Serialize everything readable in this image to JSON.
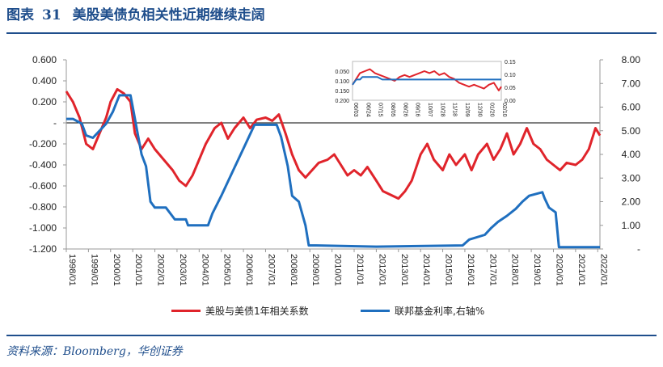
{
  "header": {
    "figure_label": "图表",
    "figure_number": "31",
    "title": "美股美债负相关性近期继续走阔"
  },
  "source": "资料来源：Bloomberg，华创证券",
  "colors": {
    "red": "#e0242b",
    "blue": "#1f6fbf",
    "rule": "#1f4e8c",
    "axis": "#888888"
  },
  "chart_data": {
    "type": "line",
    "title": "美股美债负相关性近期继续走阔",
    "x_categories": [
      "1998/01",
      "1999/01",
      "2000/01",
      "2001/01",
      "2002/01",
      "2003/01",
      "2004/01",
      "2005/01",
      "2006/01",
      "2007/01",
      "2008/01",
      "2009/01",
      "2010/01",
      "2011/01",
      "2012/01",
      "2013/01",
      "2014/01",
      "2015/01",
      "2016/01",
      "2017/01",
      "2018/01",
      "2019/01",
      "2020/01",
      "2021/01",
      "2022/01"
    ],
    "y_left": {
      "min": -1.2,
      "max": 0.6,
      "ticks": [
        "0.600",
        "0.400",
        "0.200",
        "-",
        "-0.200",
        "-0.400",
        "-0.600",
        "-0.800",
        "-1.000",
        "-1.200"
      ]
    },
    "y_right": {
      "min": 0,
      "max": 8,
      "ticks": [
        "8.00",
        "7.00",
        "6.00",
        "5.00",
        "4.00",
        "3.00",
        "2.00",
        "1.00",
        "-"
      ]
    },
    "series": [
      {
        "name": "美股与美债1年相关系数",
        "axis": "left",
        "color": "#e0242b",
        "points": [
          [
            1998.0,
            0.3
          ],
          [
            1998.3,
            0.2
          ],
          [
            1998.6,
            0.05
          ],
          [
            1998.9,
            -0.2
          ],
          [
            1999.2,
            -0.25
          ],
          [
            1999.5,
            -0.1
          ],
          [
            1999.8,
            0.05
          ],
          [
            2000.0,
            0.2
          ],
          [
            2000.3,
            0.32
          ],
          [
            2000.6,
            0.28
          ],
          [
            2000.9,
            0.2
          ],
          [
            2001.1,
            -0.1
          ],
          [
            2001.4,
            -0.25
          ],
          [
            2001.7,
            -0.15
          ],
          [
            2002.0,
            -0.25
          ],
          [
            2002.4,
            -0.35
          ],
          [
            2002.8,
            -0.45
          ],
          [
            2003.1,
            -0.55
          ],
          [
            2003.4,
            -0.6
          ],
          [
            2003.7,
            -0.5
          ],
          [
            2004.0,
            -0.35
          ],
          [
            2004.3,
            -0.2
          ],
          [
            2004.7,
            -0.05
          ],
          [
            2005.0,
            0.0
          ],
          [
            2005.3,
            -0.15
          ],
          [
            2005.6,
            -0.05
          ],
          [
            2006.0,
            0.05
          ],
          [
            2006.3,
            -0.05
          ],
          [
            2006.6,
            0.03
          ],
          [
            2007.0,
            0.05
          ],
          [
            2007.3,
            0.02
          ],
          [
            2007.6,
            0.08
          ],
          [
            2007.9,
            -0.1
          ],
          [
            2008.2,
            -0.3
          ],
          [
            2008.5,
            -0.45
          ],
          [
            2008.8,
            -0.52
          ],
          [
            2009.1,
            -0.45
          ],
          [
            2009.4,
            -0.38
          ],
          [
            2009.8,
            -0.35
          ],
          [
            2010.1,
            -0.3
          ],
          [
            2010.4,
            -0.4
          ],
          [
            2010.7,
            -0.5
          ],
          [
            2011.0,
            -0.45
          ],
          [
            2011.3,
            -0.5
          ],
          [
            2011.6,
            -0.42
          ],
          [
            2012.0,
            -0.55
          ],
          [
            2012.3,
            -0.65
          ],
          [
            2012.6,
            -0.68
          ],
          [
            2013.0,
            -0.72
          ],
          [
            2013.3,
            -0.65
          ],
          [
            2013.6,
            -0.55
          ],
          [
            2014.0,
            -0.3
          ],
          [
            2014.3,
            -0.2
          ],
          [
            2014.6,
            -0.35
          ],
          [
            2015.0,
            -0.45
          ],
          [
            2015.3,
            -0.3
          ],
          [
            2015.6,
            -0.4
          ],
          [
            2016.0,
            -0.3
          ],
          [
            2016.3,
            -0.45
          ],
          [
            2016.6,
            -0.3
          ],
          [
            2017.0,
            -0.2
          ],
          [
            2017.3,
            -0.35
          ],
          [
            2017.6,
            -0.25
          ],
          [
            2017.9,
            -0.1
          ],
          [
            2018.2,
            -0.3
          ],
          [
            2018.5,
            -0.2
          ],
          [
            2018.8,
            -0.05
          ],
          [
            2019.1,
            -0.2
          ],
          [
            2019.4,
            -0.25
          ],
          [
            2019.7,
            -0.35
          ],
          [
            2020.0,
            -0.4
          ],
          [
            2020.3,
            -0.45
          ],
          [
            2020.6,
            -0.38
          ],
          [
            2021.0,
            -0.4
          ],
          [
            2021.3,
            -0.35
          ],
          [
            2021.6,
            -0.25
          ],
          [
            2021.9,
            -0.05
          ],
          [
            2022.1,
            -0.12
          ]
        ]
      },
      {
        "name": "联邦基金利率,右轴%",
        "axis": "right",
        "color": "#1f6fbf",
        "points": [
          [
            1998.0,
            5.5
          ],
          [
            1998.3,
            5.5
          ],
          [
            1998.7,
            5.3
          ],
          [
            1998.9,
            4.8
          ],
          [
            1999.2,
            4.7
          ],
          [
            1999.5,
            5.0
          ],
          [
            1999.8,
            5.3
          ],
          [
            2000.1,
            5.8
          ],
          [
            2000.4,
            6.5
          ],
          [
            2000.6,
            6.5
          ],
          [
            2000.9,
            6.5
          ],
          [
            2001.0,
            6.0
          ],
          [
            2001.2,
            5.0
          ],
          [
            2001.4,
            4.0
          ],
          [
            2001.6,
            3.5
          ],
          [
            2001.8,
            2.0
          ],
          [
            2002.0,
            1.75
          ],
          [
            2002.5,
            1.75
          ],
          [
            2002.9,
            1.25
          ],
          [
            2003.4,
            1.25
          ],
          [
            2003.5,
            1.0
          ],
          [
            2004.4,
            1.0
          ],
          [
            2004.6,
            1.5
          ],
          [
            2005.0,
            2.25
          ],
          [
            2005.5,
            3.25
          ],
          [
            2006.0,
            4.25
          ],
          [
            2006.5,
            5.25
          ],
          [
            2007.5,
            5.25
          ],
          [
            2007.7,
            4.75
          ],
          [
            2008.0,
            3.5
          ],
          [
            2008.2,
            2.25
          ],
          [
            2008.5,
            2.0
          ],
          [
            2008.8,
            1.0
          ],
          [
            2008.95,
            0.15
          ],
          [
            2009.3,
            0.15
          ],
          [
            2012.0,
            0.1
          ],
          [
            2015.9,
            0.15
          ],
          [
            2016.2,
            0.4
          ],
          [
            2016.9,
            0.6
          ],
          [
            2017.2,
            0.9
          ],
          [
            2017.5,
            1.15
          ],
          [
            2017.9,
            1.4
          ],
          [
            2018.3,
            1.7
          ],
          [
            2018.6,
            2.0
          ],
          [
            2018.9,
            2.25
          ],
          [
            2019.5,
            2.4
          ],
          [
            2019.6,
            2.15
          ],
          [
            2019.8,
            1.75
          ],
          [
            2020.1,
            1.55
          ],
          [
            2020.25,
            0.08
          ],
          [
            2021.5,
            0.08
          ],
          [
            2022.1,
            0.08
          ]
        ]
      }
    ],
    "inset": {
      "type": "line",
      "x_categories": [
        "06/03",
        "06/24",
        "07/15",
        "08/05",
        "08/26",
        "09/16",
        "10/07",
        "10/28",
        "11/18",
        "12/09",
        "12/30",
        "01/20",
        "02/10"
      ],
      "y_left": {
        "min": -0.2,
        "max": 0.0,
        "ticks": [
          "0.050",
          "0.100",
          "0.150",
          "0.200"
        ]
      },
      "y_right": {
        "min": 0.0,
        "max": 0.15,
        "ticks": [
          "0.15",
          "0.10",
          "0.05",
          "0.00"
        ]
      },
      "series": [
        {
          "name": "美股与美债1年相关系数",
          "color": "#e0242b",
          "points": [
            [
              0.0,
              -0.12
            ],
            [
              0.3,
              -0.09
            ],
            [
              0.6,
              -0.06
            ],
            [
              1.0,
              -0.05
            ],
            [
              1.4,
              -0.04
            ],
            [
              1.8,
              -0.06
            ],
            [
              2.2,
              -0.07
            ],
            [
              2.6,
              -0.08
            ],
            [
              3.0,
              -0.09
            ],
            [
              3.4,
              -0.1
            ],
            [
              3.8,
              -0.08
            ],
            [
              4.2,
              -0.07
            ],
            [
              4.6,
              -0.08
            ],
            [
              5.0,
              -0.07
            ],
            [
              5.4,
              -0.06
            ],
            [
              5.8,
              -0.05
            ],
            [
              6.2,
              -0.06
            ],
            [
              6.6,
              -0.05
            ],
            [
              7.0,
              -0.07
            ],
            [
              7.4,
              -0.06
            ],
            [
              7.8,
              -0.08
            ],
            [
              8.2,
              -0.09
            ],
            [
              8.6,
              -0.11
            ],
            [
              9.0,
              -0.12
            ],
            [
              9.4,
              -0.13
            ],
            [
              9.8,
              -0.12
            ],
            [
              10.2,
              -0.13
            ],
            [
              10.6,
              -0.14
            ],
            [
              11.0,
              -0.12
            ],
            [
              11.4,
              -0.11
            ],
            [
              11.8,
              -0.15
            ],
            [
              12.0,
              -0.13
            ]
          ]
        },
        {
          "name": "联邦基金利率,右轴%",
          "color": "#1f6fbf",
          "points": [
            [
              0.0,
              0.06
            ],
            [
              0.3,
              0.08
            ],
            [
              0.6,
              0.08
            ],
            [
              0.8,
              0.09
            ],
            [
              1.0,
              0.09
            ],
            [
              1.6,
              0.09
            ],
            [
              2.0,
              0.09
            ],
            [
              2.4,
              0.08
            ],
            [
              3.0,
              0.08
            ],
            [
              3.6,
              0.08
            ],
            [
              4.0,
              0.08
            ],
            [
              4.4,
              0.08
            ],
            [
              5.0,
              0.08
            ],
            [
              6.0,
              0.08
            ],
            [
              7.0,
              0.08
            ],
            [
              8.0,
              0.08
            ],
            [
              9.0,
              0.08
            ],
            [
              10.0,
              0.08
            ],
            [
              11.0,
              0.08
            ],
            [
              12.0,
              0.08
            ]
          ]
        }
      ]
    }
  }
}
